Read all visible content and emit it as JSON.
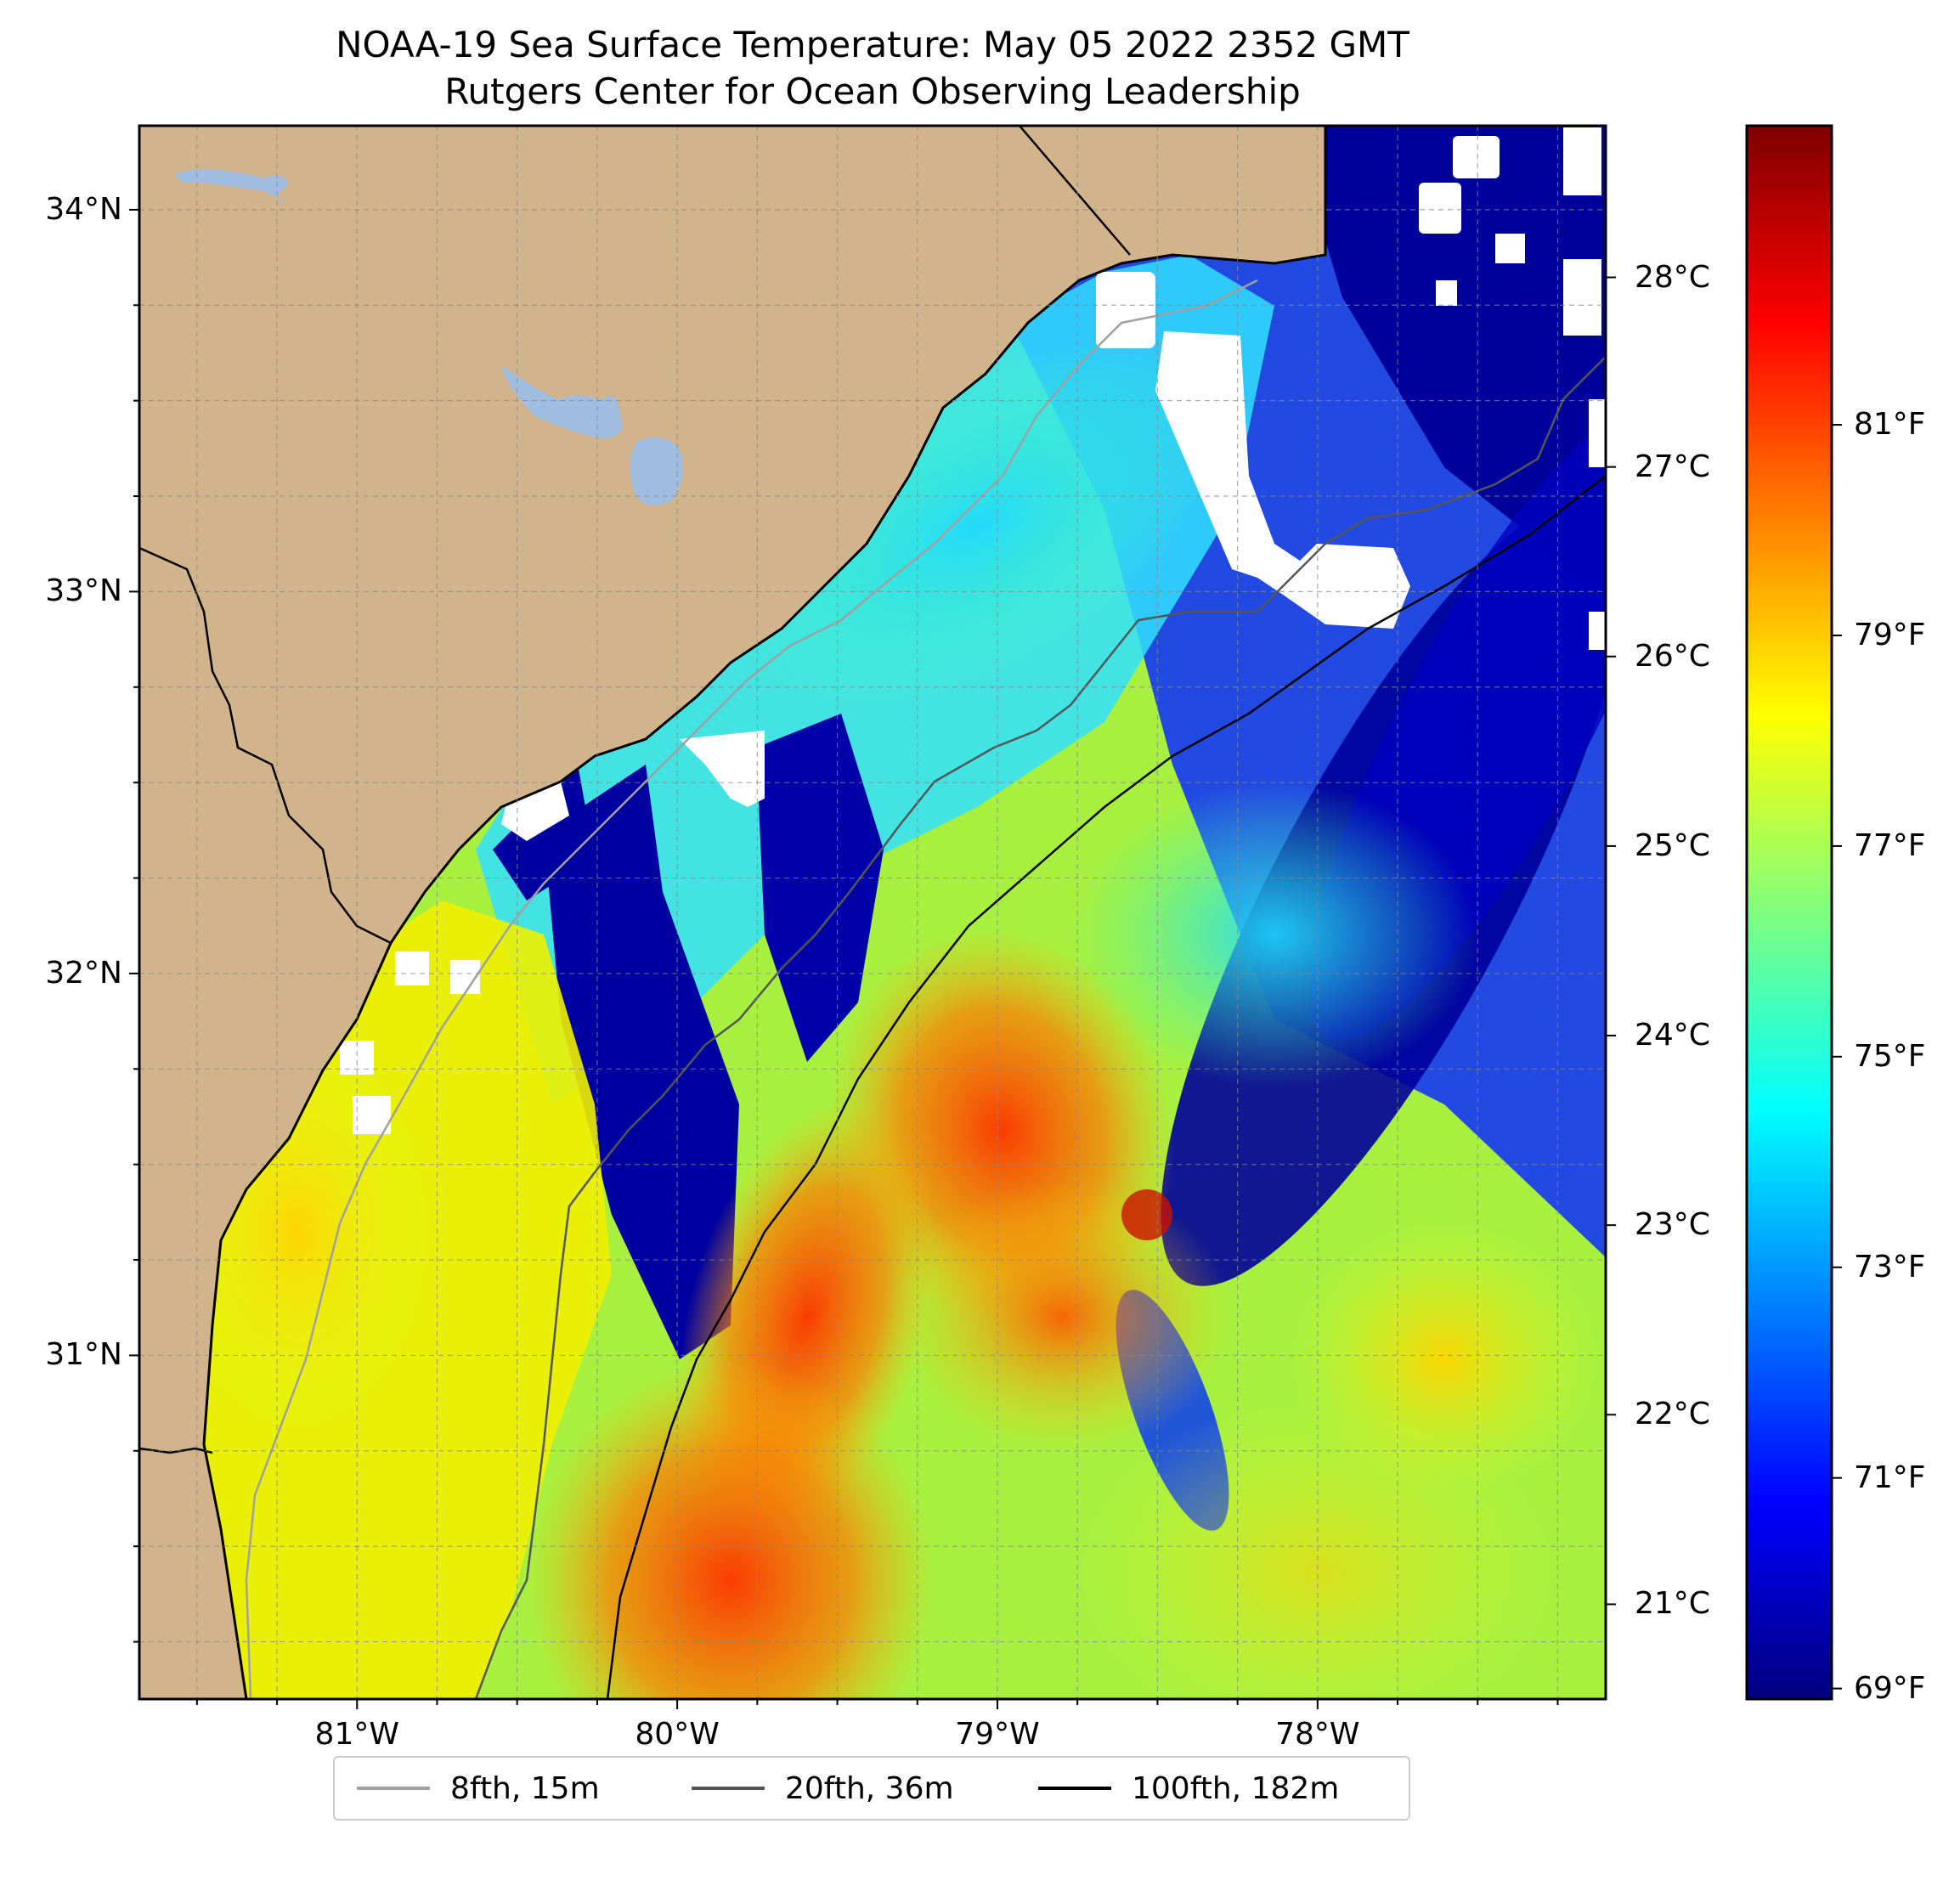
{
  "title": {
    "line1": "NOAA-19 Sea Surface Temperature: May 05 2022 2352 GMT",
    "line2": "Rutgers Center for Ocean Observing Leadership"
  },
  "map": {
    "lon_range": [
      -81.68,
      -77.1
    ],
    "lat_range": [
      30.1,
      34.22
    ],
    "land_color": "#d2b48c",
    "lake_color": "#a0bde0",
    "lon_ticks": [
      {
        "value": -81,
        "label": "81°W"
      },
      {
        "value": -80,
        "label": "80°W"
      },
      {
        "value": -79,
        "label": "79°W"
      },
      {
        "value": -78,
        "label": "78°W"
      }
    ],
    "lat_ticks": [
      {
        "value": 34,
        "label": "34°N"
      },
      {
        "value": 33,
        "label": "33°N"
      },
      {
        "value": 32,
        "label": "32°N"
      },
      {
        "value": 31,
        "label": "31°N"
      }
    ]
  },
  "colorbar": {
    "colormap": "jet",
    "c_range": [
      20.5,
      28.8
    ],
    "celsius_ticks": [
      {
        "value": 21,
        "label": "21°C"
      },
      {
        "value": 22,
        "label": "22°C"
      },
      {
        "value": 23,
        "label": "23°C"
      },
      {
        "value": 24,
        "label": "24°C"
      },
      {
        "value": 25,
        "label": "25°C"
      },
      {
        "value": 26,
        "label": "26°C"
      },
      {
        "value": 27,
        "label": "27°C"
      },
      {
        "value": 28,
        "label": "28°C"
      }
    ],
    "fahrenheit_ticks": [
      {
        "value": 69,
        "label": "69°F"
      },
      {
        "value": 71,
        "label": "71°F"
      },
      {
        "value": 73,
        "label": "73°F"
      },
      {
        "value": 75,
        "label": "75°F"
      },
      {
        "value": 77,
        "label": "77°F"
      },
      {
        "value": 79,
        "label": "79°F"
      },
      {
        "value": 81,
        "label": "81°F"
      }
    ]
  },
  "legend": {
    "items": [
      {
        "label": "8fth, 15m",
        "color": "#a0a0a0"
      },
      {
        "label": "20fth, 36m",
        "color": "#555555"
      },
      {
        "label": "100fth, 182m",
        "color": "#000000"
      }
    ]
  }
}
